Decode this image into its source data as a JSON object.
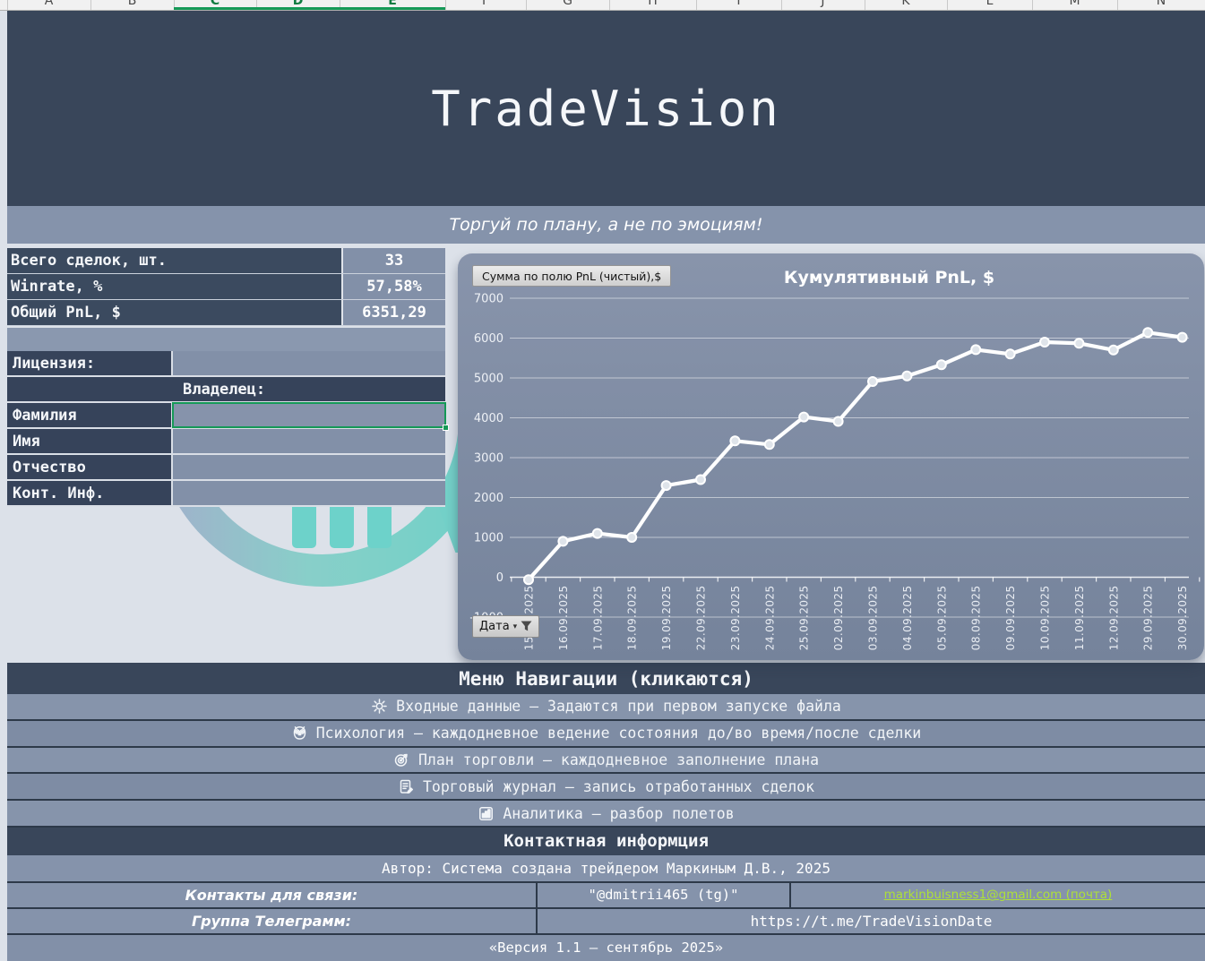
{
  "spreadsheet": {
    "columns": [
      "A",
      "B",
      "C",
      "D",
      "E",
      "F",
      "G",
      "H",
      "I",
      "J",
      "K",
      "L",
      "M",
      "N"
    ],
    "selected_columns": [
      "C",
      "D",
      "E"
    ]
  },
  "header": {
    "title": "TradeVision",
    "motto": "Торгуй по плану, а не по эмоциям!"
  },
  "stats": {
    "rows": [
      {
        "label": "Всего сделок, шт.",
        "value": "33"
      },
      {
        "label": "Winrate, %",
        "value": "57,58%"
      },
      {
        "label": "Общий PnL, $",
        "value": "6351,29"
      }
    ]
  },
  "license": {
    "label": "Лицензия:",
    "value": "",
    "owner_header": "Владелец:",
    "fields": [
      {
        "label": "Фамилия",
        "value": "",
        "selected": true
      },
      {
        "label": "Имя",
        "value": "",
        "selected": false
      },
      {
        "label": "Отчество",
        "value": "",
        "selected": false
      },
      {
        "label": "Конт. Инф.",
        "value": "",
        "selected": false
      }
    ]
  },
  "chart": {
    "field_button": "Сумма по полю PnL (чистый),$",
    "title": "Кумулятивный PnL, $",
    "axis_filter_button": "Дата"
  },
  "chart_data": {
    "type": "line",
    "title": "Кумулятивный PnL, $",
    "series_name": "Сумма по полю PnL (чистый),$",
    "x": [
      "15.09.2025",
      "16.09.2025",
      "17.09.2025",
      "18.09.2025",
      "19.09.2025",
      "22.09.2025",
      "23.09.2025",
      "24.09.2025",
      "25.09.2025",
      "02.09.2025",
      "03.09.2025",
      "04.09.2025",
      "05.09.2025",
      "08.09.2025",
      "09.09.2025",
      "10.09.2025",
      "11.09.2025",
      "12.09.2025",
      "29.09.2025",
      "30.09.2025"
    ],
    "values": [
      -60,
      900,
      1100,
      1000,
      2300,
      2450,
      3420,
      3330,
      4020,
      3910,
      4910,
      5050,
      5330,
      5710,
      5600,
      5900,
      5870,
      5700,
      6140,
      6020
    ],
    "xlabel": "Дата",
    "ylabel": "",
    "ylim": [
      -1000,
      7000
    ],
    "ytick_step": 1000,
    "grid": true,
    "legend_position": "none",
    "line_color": "#FFFFFF"
  },
  "menu": {
    "title": "Меню Навигации (кликаются)",
    "items": [
      {
        "icon": "gear-icon",
        "label": "Входные данные – Задаются при первом запуске файла"
      },
      {
        "icon": "owl-icon",
        "label": "Психология – каждодневное ведение состояния до/во время/после сделки"
      },
      {
        "icon": "target-icon",
        "label": "План торговли – каждодневное заполнение плана"
      },
      {
        "icon": "journal-icon",
        "label": "Торговый журнал – запись отработанных сделок"
      },
      {
        "icon": "bar-chart-icon",
        "label": "Аналитика – разбор полетов"
      }
    ]
  },
  "contacts": {
    "title": "Контактная информция",
    "author": "Автор: Система создана трейдером Маркиным Д.В., 2025",
    "contact_label": "Контакты для связи:",
    "telegram_handle": "\"@dmitrii465 (tg)\"",
    "email": "markinbuisness1@gmail.com (почта)",
    "group_label": "Группа Телеграмм:",
    "group_url": "https://t.me/TradeVisionDate",
    "version": "«Версия 1.1 – сентябрь 2025»"
  },
  "colors": {
    "dark_band": "#39465A",
    "light_row": "#8593AB",
    "value_cell_bg": "#8290A8",
    "stats_label_bg": "#3B4A5F",
    "license_label_bg": "#36435A",
    "page_bg": "#DCE1E9",
    "chart_card_bg": "#7E8CA4",
    "selection_green": "#159957",
    "link_green": "#AEE137",
    "separator": "#2D3949",
    "watermark_teal": "#5FC9BE"
  }
}
